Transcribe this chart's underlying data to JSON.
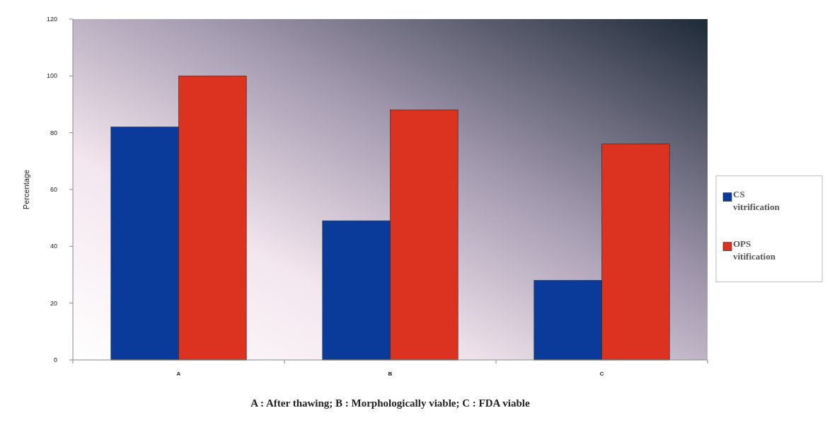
{
  "chart_data": {
    "type": "bar",
    "ylabel": "Percentage",
    "categories": [
      "A",
      "B",
      "C"
    ],
    "series": [
      {
        "name": "CS vitrification",
        "color": "#0a3a9a",
        "values": [
          82,
          49,
          28
        ]
      },
      {
        "name": "OPS vitification",
        "color": "#dc3220",
        "values": [
          100,
          88,
          76
        ]
      }
    ],
    "ylim": [
      0,
      120
    ],
    "yticks": [
      0,
      20,
      40,
      60,
      80,
      100,
      120
    ],
    "legend": "right",
    "annotations": [
      "A : After thawing;  B : Morphologically viable; C : FDA viable"
    ]
  }
}
